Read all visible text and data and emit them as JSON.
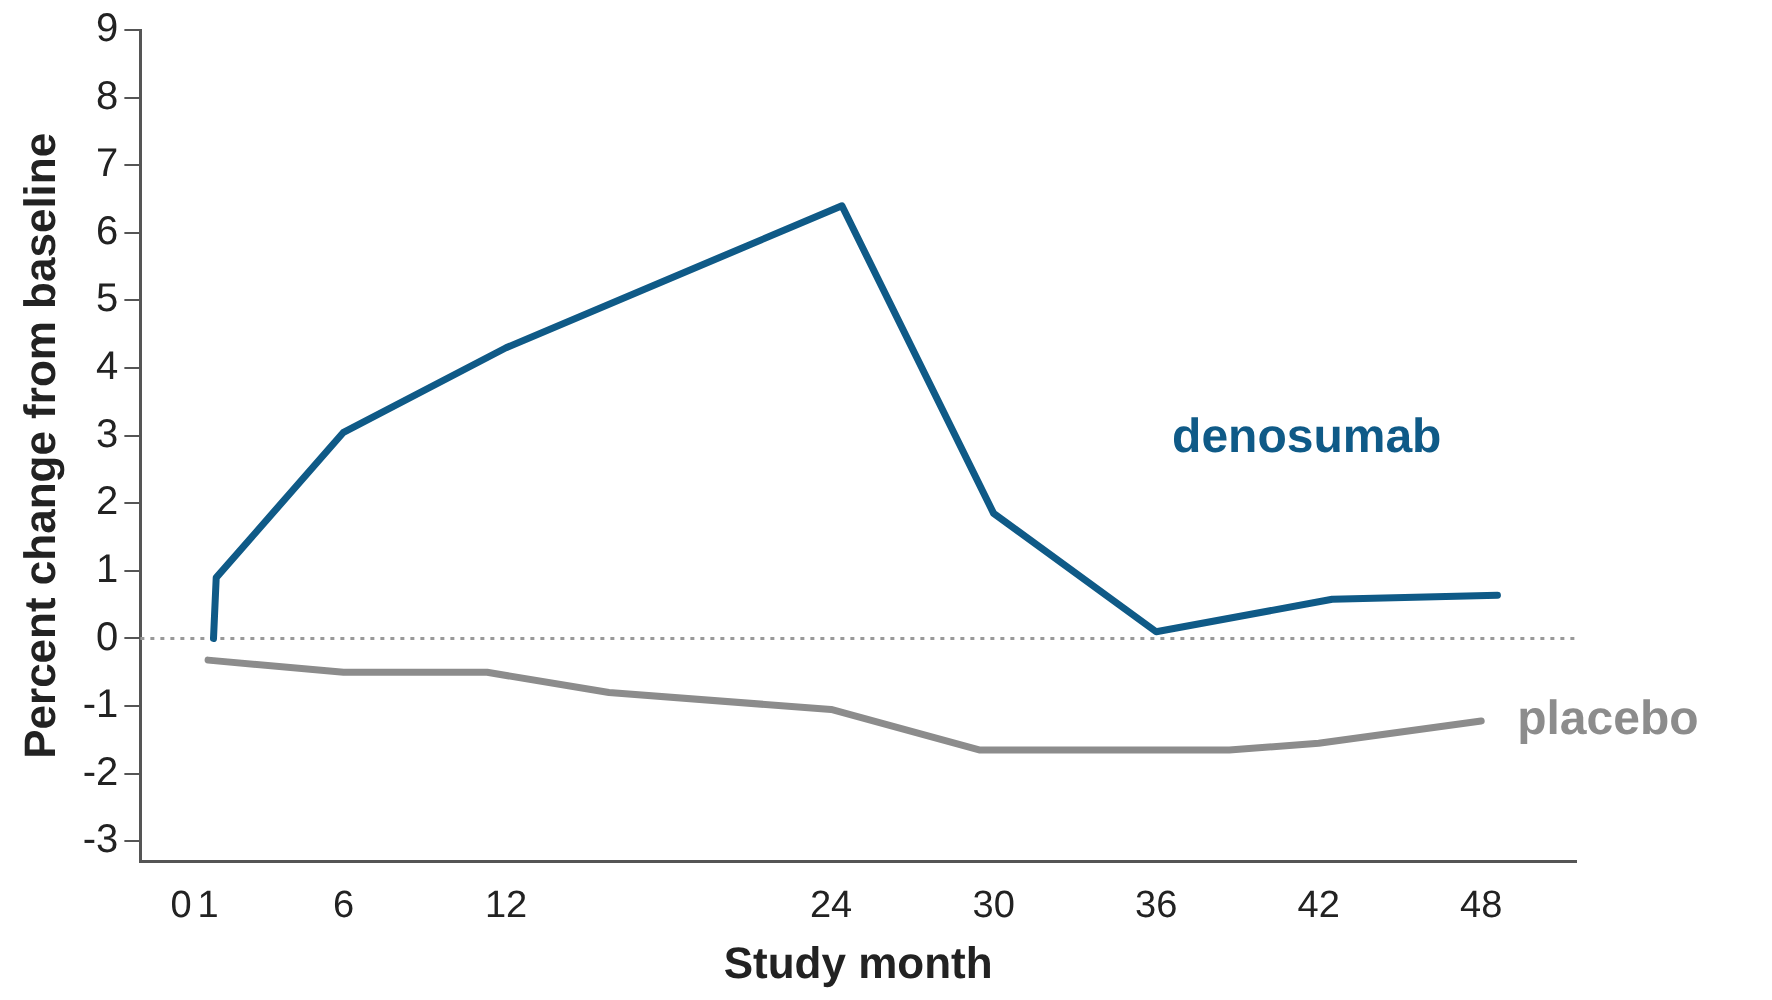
{
  "chart_data": {
    "type": "line",
    "xlabel": "Study month",
    "ylabel": "Percent change from baseline",
    "xlim": [
      -1.5,
      51.5
    ],
    "xticks": [
      0,
      1,
      6,
      12,
      24,
      30,
      36,
      42,
      48
    ],
    "ylim": [
      -3.3,
      9
    ],
    "yticks": [
      -3,
      -2,
      -1,
      0,
      1,
      2,
      3,
      4,
      5,
      6,
      7,
      8,
      9
    ],
    "grid": false,
    "legend": false,
    "marker": "none",
    "line_style": "solid",
    "ref_lines": [
      {
        "axis": "y",
        "value": 0,
        "color": "#999999",
        "line_style": "dotted"
      }
    ],
    "series": [
      {
        "name": "denosumab",
        "color": "#0f5a87",
        "x": [
          1.2,
          1.3,
          6,
          12,
          24.4,
          30,
          36,
          42.5,
          48.6
        ],
        "values": [
          0,
          0.9,
          3.05,
          4.3,
          6.4,
          1.85,
          0.1,
          0.58,
          0.64
        ]
      },
      {
        "name": "placebo",
        "color": "#8c8c8c",
        "x": [
          1,
          6,
          11.3,
          15.8,
          24,
          29.5,
          38.7,
          42,
          48
        ],
        "values": [
          -0.32,
          -0.5,
          -0.5,
          -0.8,
          -1.05,
          -1.65,
          -1.65,
          -1.55,
          -1.22
        ]
      }
    ]
  }
}
